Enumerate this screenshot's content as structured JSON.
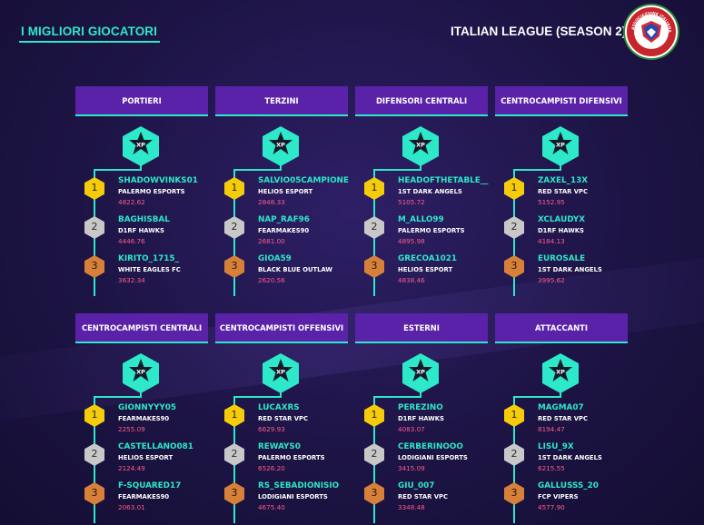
{
  "header": {
    "title": "I MIGLIORI GIOCATORI",
    "league": "ITALIAN LEAGUE (SEASON 2)",
    "logo_text": "ASSOCIAZIONE ITALIANA DI CYBERFOOTBALL"
  },
  "colors": {
    "accent": "#2de8c9",
    "header_bg": "#5a22a8",
    "score": "#ff5c8a",
    "gold": "#f5cc0c",
    "silver": "#c8c8c8",
    "bronze": "#d6803a"
  },
  "xp_label": "XP",
  "ranks": [
    "1",
    "2",
    "3"
  ],
  "categories": [
    {
      "title": "PORTIERI",
      "players": [
        {
          "name": "SHADOWVINKS01",
          "team": "PALERMO ESPORTS",
          "score": "4822.62"
        },
        {
          "name": "BAGHISBAL",
          "team": "D1RF HAWKS",
          "score": "4446.76"
        },
        {
          "name": "KIRITO_1715_",
          "team": "WHITE EAGLES FC",
          "score": "3632.34"
        }
      ]
    },
    {
      "title": "TERZINI",
      "players": [
        {
          "name": "SALVIO05CAMPIONE",
          "team": "HELIOS ESPORT",
          "score": "2848.33"
        },
        {
          "name": "NAP_RAF96",
          "team": "FEARMAKES90",
          "score": "2681.00"
        },
        {
          "name": "GIOA59",
          "team": "BLACK BLUE OUTLAW",
          "score": "2620.56"
        }
      ]
    },
    {
      "title": "DIFENSORI CENTRALI",
      "players": [
        {
          "name": "HEADOFTHETABLE__",
          "team": "1ST DARK ANGELS",
          "score": "5105.72"
        },
        {
          "name": "M_ALLO99",
          "team": "PALERMO ESPORTS",
          "score": "4895.98"
        },
        {
          "name": "GRECOA1021",
          "team": "HELIOS ESPORT",
          "score": "4838.46"
        }
      ]
    },
    {
      "title": "CENTROCAMPISTI DIFENSIVI",
      "players": [
        {
          "name": "ZAXEL_13X",
          "team": "RED STAR VPC",
          "score": "5152.95"
        },
        {
          "name": "XCLAUDYX",
          "team": "D1RF HAWKS",
          "score": "4184.13"
        },
        {
          "name": "EUROSALE",
          "team": "1ST DARK ANGELS",
          "score": "3995.62"
        }
      ]
    },
    {
      "title": "CENTROCAMPISTI CENTRALI",
      "players": [
        {
          "name": "GIONNYYY05",
          "team": "FEARMAKES90",
          "score": "2255.09"
        },
        {
          "name": "CASTELLANO081",
          "team": "HELIOS ESPORT",
          "score": "2124.49"
        },
        {
          "name": "F-SQUARED17",
          "team": "FEARMAKES90",
          "score": "2063.01"
        }
      ]
    },
    {
      "title": "CENTROCAMPISTI OFFENSIVI",
      "players": [
        {
          "name": "LUCAXRS",
          "team": "RED STAR VPC",
          "score": "6629.93"
        },
        {
          "name": "REWAYS0",
          "team": "PALERMO ESPORTS",
          "score": "6526.20"
        },
        {
          "name": "RS_SEBADIONISIO",
          "team": "LODIGIANI ESPORTS",
          "score": "4675.40"
        }
      ]
    },
    {
      "title": "ESTERNI",
      "players": [
        {
          "name": "PEREZINO",
          "team": "D1RF HAWKS",
          "score": "4083.07"
        },
        {
          "name": "CERBERINOOO",
          "team": "LODIGIANI ESPORTS",
          "score": "3415.09"
        },
        {
          "name": "GIU_007",
          "team": "RED STAR VPC",
          "score": "3348.48"
        }
      ]
    },
    {
      "title": "ATTACCANTI",
      "players": [
        {
          "name": "MAGMA07",
          "team": "RED STAR VPC",
          "score": "8194.47"
        },
        {
          "name": "LISU_9X",
          "team": "1ST DARK ANGELS",
          "score": "6215.55"
        },
        {
          "name": "GALLUSSS_20",
          "team": "FCP VIPERS",
          "score": "4577.90"
        }
      ]
    }
  ]
}
